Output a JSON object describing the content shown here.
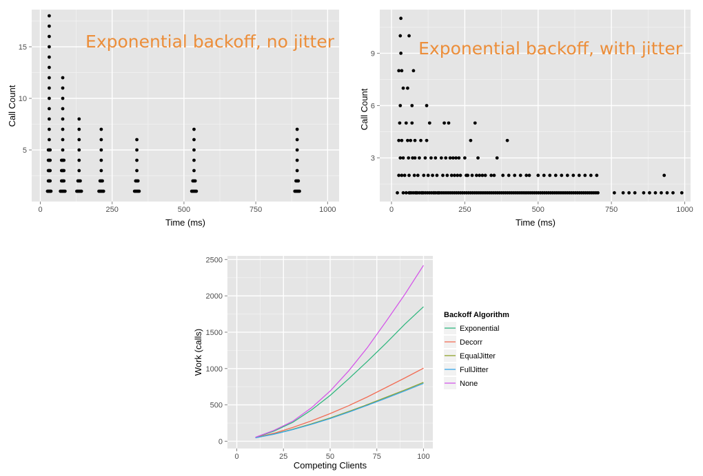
{
  "chart_data": [
    {
      "type": "scatter",
      "annotation": "Exponential backoff, no jitter",
      "xlabel": "Time (ms)",
      "ylabel": "Call Count",
      "xlim": [
        -30,
        1040
      ],
      "ylim": [
        0,
        18.6
      ],
      "xticks": [
        0,
        250,
        500,
        750,
        1000
      ],
      "yticks": [
        5,
        10,
        15
      ],
      "grid": true,
      "color": "#000000",
      "clusters": [
        {
          "x": [
            25,
            28,
            31,
            34,
            37
          ],
          "max": 18
        },
        {
          "x": [
            70,
            74,
            78,
            82,
            86
          ],
          "max": 12
        },
        {
          "x": [
            127,
            131,
            135,
            139,
            143
          ],
          "max": 8
        },
        {
          "x": [
            204,
            208,
            212,
            216,
            220
          ],
          "max": 7
        },
        {
          "x": [
            328,
            332,
            336,
            340,
            344
          ],
          "max": 6
        },
        {
          "x": [
            527,
            531,
            535,
            539,
            543
          ],
          "max": 7
        },
        {
          "x": [
            886,
            890,
            894,
            898,
            902
          ],
          "max": 7
        }
      ]
    },
    {
      "type": "scatter",
      "annotation": "Exponential backoff, with jitter",
      "xlabel": "Time (ms)",
      "ylabel": "Call Count",
      "xlim": [
        -40,
        1020
      ],
      "ylim": [
        0.5,
        11.5
      ],
      "xticks": [
        0,
        250,
        500,
        750,
        1000
      ],
      "yticks": [
        3,
        6,
        9
      ],
      "grid": true,
      "color": "#000000",
      "points": [
        [
          20,
          1
        ],
        [
          25,
          2
        ],
        [
          25,
          4
        ],
        [
          25,
          8
        ],
        [
          28,
          5
        ],
        [
          30,
          3
        ],
        [
          30,
          6
        ],
        [
          30,
          10
        ],
        [
          32,
          9
        ],
        [
          32,
          11
        ],
        [
          35,
          4
        ],
        [
          35,
          2
        ],
        [
          35,
          8
        ],
        [
          40,
          7
        ],
        [
          40,
          3
        ],
        [
          40,
          1
        ],
        [
          45,
          2
        ],
        [
          50,
          5
        ],
        [
          50,
          1
        ],
        [
          55,
          7
        ],
        [
          55,
          4
        ],
        [
          58,
          3
        ],
        [
          60,
          10
        ],
        [
          60,
          2
        ],
        [
          62,
          1
        ],
        [
          65,
          4
        ],
        [
          70,
          6
        ],
        [
          70,
          5
        ],
        [
          72,
          3
        ],
        [
          75,
          8
        ],
        [
          78,
          2
        ],
        [
          80,
          3
        ],
        [
          80,
          4
        ],
        [
          85,
          1
        ],
        [
          90,
          2
        ],
        [
          95,
          3
        ],
        [
          100,
          4
        ],
        [
          105,
          1
        ],
        [
          110,
          2
        ],
        [
          115,
          3
        ],
        [
          120,
          4
        ],
        [
          120,
          6
        ],
        [
          125,
          2
        ],
        [
          130,
          5
        ],
        [
          135,
          3
        ],
        [
          140,
          2
        ],
        [
          145,
          1
        ],
        [
          150,
          3
        ],
        [
          155,
          2
        ],
        [
          160,
          1
        ],
        [
          170,
          3
        ],
        [
          175,
          2
        ],
        [
          180,
          5
        ],
        [
          185,
          3
        ],
        [
          190,
          2
        ],
        [
          195,
          5
        ],
        [
          200,
          3
        ],
        [
          205,
          2
        ],
        [
          210,
          3
        ],
        [
          215,
          2
        ],
        [
          220,
          3
        ],
        [
          225,
          2
        ],
        [
          230,
          3
        ],
        [
          235,
          2
        ],
        [
          250,
          3
        ],
        [
          255,
          2
        ],
        [
          260,
          2
        ],
        [
          270,
          4
        ],
        [
          275,
          2
        ],
        [
          285,
          5
        ],
        [
          290,
          2
        ],
        [
          295,
          3
        ],
        [
          300,
          2
        ],
        [
          310,
          2
        ],
        [
          320,
          2
        ],
        [
          340,
          2
        ],
        [
          350,
          2
        ],
        [
          360,
          3
        ],
        [
          380,
          2
        ],
        [
          395,
          4
        ],
        [
          400,
          2
        ],
        [
          420,
          2
        ],
        [
          440,
          2
        ],
        [
          460,
          2
        ],
        [
          470,
          2
        ],
        [
          500,
          2
        ],
        [
          520,
          2
        ],
        [
          540,
          2
        ],
        [
          560,
          2
        ],
        [
          580,
          2
        ],
        [
          600,
          2
        ],
        [
          620,
          2
        ],
        [
          640,
          2
        ],
        [
          660,
          2
        ],
        [
          680,
          2
        ],
        [
          700,
          2
        ],
        [
          930,
          2
        ]
      ],
      "baseline": {
        "y": 1,
        "from": 60,
        "to": 710,
        "step": 7
      },
      "baseline_extra": [
        760,
        790,
        810,
        830,
        860,
        880,
        900,
        920,
        940,
        960,
        990
      ]
    },
    {
      "type": "line",
      "xlabel": "Competing Clients",
      "ylabel": "Work (calls)",
      "xlim": [
        -5,
        105
      ],
      "ylim": [
        -100,
        2550
      ],
      "xticks": [
        0,
        25,
        50,
        75,
        100
      ],
      "yticks": [
        0,
        500,
        1000,
        1500,
        2000,
        2500
      ],
      "grid": true,
      "legend": {
        "title": "Backoff Algorithm",
        "position": "right"
      },
      "x": [
        10,
        20,
        30,
        40,
        50,
        60,
        70,
        80,
        90,
        100
      ],
      "series": [
        {
          "name": "Exponential",
          "color": "#2eb67d",
          "values": [
            52,
            140,
            260,
            430,
            630,
            860,
            1100,
            1350,
            1610,
            1850
          ]
        },
        {
          "name": "Decorr",
          "color": "#f26d55",
          "values": [
            50,
            110,
            190,
            280,
            380,
            490,
            610,
            740,
            870,
            1005
          ]
        },
        {
          "name": "EqualJitter",
          "color": "#8ea22b",
          "values": [
            48,
            100,
            165,
            240,
            320,
            410,
            505,
            605,
            705,
            810
          ]
        },
        {
          "name": "FullJitter",
          "color": "#36a6e9",
          "values": [
            47,
            97,
            160,
            233,
            312,
            400,
            495,
            592,
            692,
            795
          ]
        },
        {
          "name": "None",
          "color": "#d458e8",
          "values": [
            55,
            150,
            275,
            460,
            690,
            970,
            1290,
            1650,
            2020,
            2420
          ]
        }
      ]
    }
  ]
}
